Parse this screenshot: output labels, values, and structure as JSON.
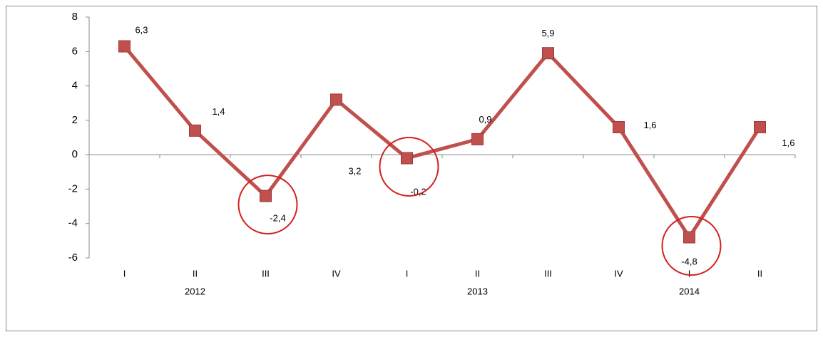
{
  "chart_data": {
    "type": "line",
    "categories": [
      "I",
      "II",
      "III",
      "IV",
      "I",
      "II",
      "III",
      "IV",
      "I",
      "II"
    ],
    "category_groups": [
      null,
      "2012",
      null,
      null,
      null,
      "2013",
      null,
      null,
      "2014",
      null
    ],
    "series": [
      {
        "color": "#c0504d",
        "values": [
          6.3,
          1.4,
          -2.4,
          3.2,
          -0.2,
          0.9,
          5.9,
          1.6,
          -4.8,
          1.6
        ],
        "value_labels": [
          "6,3",
          "1,4",
          "-2,4",
          "3,2",
          "-0,2",
          "0,9",
          "5,9",
          "1,6",
          "-4,8",
          "1,6"
        ],
        "highlight": [
          false,
          false,
          true,
          false,
          true,
          false,
          false,
          false,
          true,
          false
        ]
      }
    ],
    "highlight_color": "#d42020",
    "ylim": [
      -6,
      8
    ],
    "yticks": [
      -6,
      -4,
      -2,
      0,
      2,
      4,
      6,
      8
    ]
  }
}
